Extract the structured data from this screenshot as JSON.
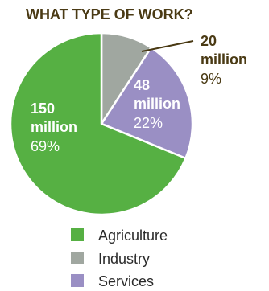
{
  "chart_data": {
    "type": "pie",
    "title": "WHAT TYPE OF WORK?",
    "categories": [
      "Agriculture",
      "Industry",
      "Services"
    ],
    "values": [
      150,
      20,
      48
    ],
    "percent_labels": [
      "69%",
      "9%",
      "22%"
    ],
    "value_labels": [
      [
        "150",
        "million"
      ],
      [
        "20",
        "million"
      ],
      [
        "48",
        "million"
      ]
    ],
    "colors": [
      "#56B043",
      "#A0A7A0",
      "#9A8FC4"
    ],
    "legend": {
      "placement": "bottom",
      "items": [
        "Agriculture",
        "Industry",
        "Services"
      ]
    },
    "start_angle_deg": 0,
    "direction": "clockwise"
  }
}
